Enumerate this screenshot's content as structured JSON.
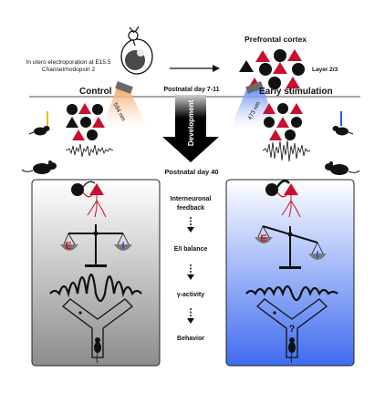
{
  "top": {
    "electroporation_line1": "In utero electroporation at E15.5",
    "electroporation_line2": "Channelrhodopsin 2",
    "region_title": "Prefrontal cortex",
    "layer_label": "Layer 2/3"
  },
  "middle": {
    "control_title": "Control",
    "early_title": "Early stimulation",
    "postnatal_start": "Postnatal day 7-11",
    "light_left": "594 nm",
    "light_right": "473 nm",
    "development": "Development",
    "postnatal_end": "Postnatal day 40"
  },
  "panels": {
    "left_e": "E",
    "left_i": "I",
    "right_e": "E",
    "right_i": "I",
    "right_question": "?"
  },
  "steps": [
    {
      "label_line1": "Interneuronal",
      "label_line2": "feedback"
    },
    {
      "label_line1": "E/I balance",
      "label_line2": ""
    },
    {
      "label_line1": "γ-activity",
      "label_line2": ""
    },
    {
      "label_line1": "Behavior",
      "label_line2": ""
    }
  ],
  "colors": {
    "red": "#c8102e",
    "blue_light": "#6f93f5",
    "orange_light": "#f4a460",
    "panel_left_top": "#ffffff",
    "panel_left_bottom": "#8c8c8c",
    "panel_right_top": "#ffffff",
    "panel_right_bottom": "#3f6cf0"
  }
}
